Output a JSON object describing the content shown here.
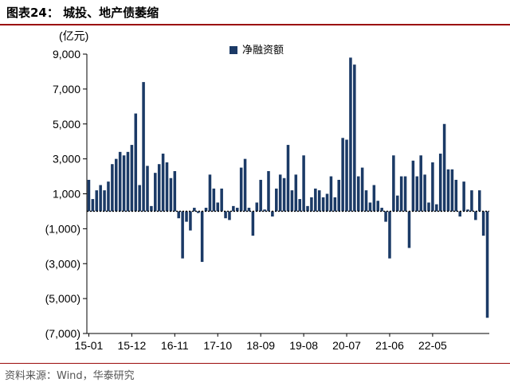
{
  "header": {
    "title": "图表24： 城投、地产债萎缩"
  },
  "source": "资料来源：Wind，华泰研究",
  "colors": {
    "bar": "#1b3a66",
    "accent_rule": "#9b0a0a"
  },
  "chart_data": {
    "type": "bar",
    "title": "",
    "unit_label": "(亿元)",
    "xlabel": "",
    "ylabel": "",
    "ylim": [
      -7000,
      9000
    ],
    "yticks": [
      9000,
      7000,
      5000,
      3000,
      1000,
      -1000,
      -3000,
      -5000,
      -7000
    ],
    "ytick_labels": [
      "9,000",
      "7,000",
      "5,000",
      "3,000",
      "1,000",
      "(1,000)",
      "(3,000)",
      "(5,000)",
      "(7,000)"
    ],
    "x_tick_labels": [
      "15-01",
      "15-12",
      "16-11",
      "17-10",
      "18-09",
      "19-08",
      "20-07",
      "21-06",
      "22-05"
    ],
    "x_tick_indices": [
      0,
      11,
      22,
      33,
      44,
      55,
      66,
      77,
      88
    ],
    "legend": {
      "position": "top-center",
      "entries": [
        "净融资额"
      ]
    },
    "grid": false,
    "series": [
      {
        "name": "净融资额",
        "values": [
          1800,
          700,
          1200,
          1500,
          1200,
          1700,
          2700,
          3000,
          3400,
          3200,
          3400,
          3800,
          5600,
          1500,
          7400,
          2600,
          300,
          2200,
          2700,
          3300,
          2800,
          1900,
          2300,
          -400,
          -2700,
          -600,
          -1100,
          200,
          -100,
          -2900,
          200,
          2100,
          1300,
          500,
          1300,
          -400,
          -500,
          300,
          200,
          2500,
          3000,
          200,
          -1400,
          500,
          1800,
          100,
          2300,
          -300,
          1300,
          2100,
          1900,
          3800,
          1200,
          2100,
          700,
          3200,
          300,
          800,
          1300,
          1200,
          800,
          1000,
          2000,
          800,
          1800,
          4200,
          4100,
          8800,
          8400,
          2000,
          2500,
          1200,
          500,
          1500,
          600,
          200,
          -600,
          -2700,
          3200,
          900,
          2000,
          2000,
          -2100,
          2900,
          2000,
          3200,
          2100,
          500,
          2800,
          400,
          3300,
          5000,
          2400,
          2400,
          1800,
          -300,
          1700,
          100,
          1200,
          -500,
          1200,
          -1400,
          -6100
        ]
      }
    ]
  }
}
